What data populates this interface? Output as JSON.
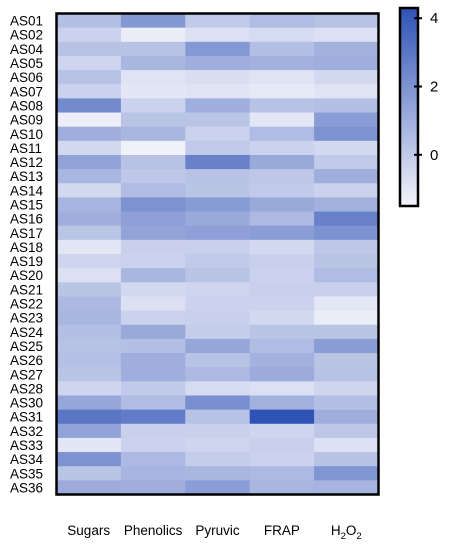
{
  "chart_data": {
    "type": "heatmap",
    "rows": [
      "AS01",
      "AS02",
      "AS04",
      "AS05",
      "AS06",
      "AS07",
      "AS08",
      "AS09",
      "AS10",
      "AS11",
      "AS12",
      "AS13",
      "AS14",
      "AS15",
      "AS16",
      "AS17",
      "AS18",
      "AS19",
      "AS20",
      "AS21",
      "AS22",
      "AS23",
      "AS24",
      "AS25",
      "AS26",
      "AS27",
      "AS28",
      "AS30",
      "AS31",
      "AS32",
      "AS33",
      "AS34",
      "AS35",
      "AS36"
    ],
    "columns": [
      {
        "label": "Sugars"
      },
      {
        "label": "Phenolics"
      },
      {
        "label": "Pyruvic"
      },
      {
        "label": "FRAP"
      },
      {
        "label": "H",
        "sub": "2",
        "mid": "O",
        "sub2": "2"
      }
    ],
    "values": [
      [
        0.4,
        1.8,
        0.0,
        0.5,
        0.3
      ],
      [
        -0.3,
        -1.2,
        -0.8,
        -0.6,
        -0.8
      ],
      [
        0.3,
        0.3,
        1.8,
        0.4,
        0.9
      ],
      [
        -0.4,
        0.7,
        1.0,
        0.9,
        1.0
      ],
      [
        0.3,
        -0.9,
        -0.7,
        -0.9,
        -0.5
      ],
      [
        -0.3,
        -1.0,
        -0.9,
        -1.1,
        -0.9
      ],
      [
        2.3,
        -0.3,
        1.0,
        0.3,
        0.4
      ],
      [
        -1.3,
        0.2,
        0.2,
        -1.0,
        1.6
      ],
      [
        1.0,
        0.7,
        -0.3,
        0.5,
        2.0
      ],
      [
        -0.5,
        -1.4,
        0.0,
        -0.3,
        -0.5
      ],
      [
        1.4,
        0.3,
        2.6,
        1.2,
        0.0
      ],
      [
        0.7,
        0.1,
        0.3,
        0.1,
        1.0
      ],
      [
        -0.5,
        0.5,
        0.2,
        0.0,
        -0.3
      ],
      [
        0.8,
        2.0,
        1.7,
        1.2,
        0.9
      ],
      [
        1.0,
        1.5,
        1.2,
        0.6,
        2.6
      ],
      [
        0.2,
        1.4,
        1.5,
        1.6,
        2.0
      ],
      [
        -1.0,
        -0.2,
        -0.2,
        -0.5,
        0.1
      ],
      [
        -0.4,
        -0.3,
        0.0,
        -0.2,
        0.2
      ],
      [
        -0.8,
        0.7,
        0.2,
        -0.3,
        0.5
      ],
      [
        0.2,
        -0.5,
        -0.4,
        -0.2,
        -0.2
      ],
      [
        0.6,
        -0.8,
        -0.3,
        -0.3,
        -1.0
      ],
      [
        0.7,
        -0.3,
        -0.2,
        -0.5,
        -1.2
      ],
      [
        0.4,
        1.2,
        -0.1,
        0.2,
        0.2
      ],
      [
        0.3,
        0.4,
        1.3,
        0.5,
        1.6
      ],
      [
        0.4,
        1.0,
        0.3,
        0.9,
        0.2
      ],
      [
        0.2,
        1.0,
        0.6,
        1.1,
        0.3
      ],
      [
        -0.4,
        0.0,
        -0.6,
        -0.8,
        -0.4
      ],
      [
        1.3,
        0.5,
        2.1,
        0.9,
        0.4
      ],
      [
        3.0,
        2.8,
        0.3,
        4.3,
        1.0
      ],
      [
        1.4,
        -0.2,
        -0.2,
        -0.4,
        0.1
      ],
      [
        -1.0,
        -0.3,
        -0.4,
        -0.2,
        -0.8
      ],
      [
        2.0,
        0.6,
        -0.1,
        -0.3,
        0.3
      ],
      [
        0.2,
        0.8,
        0.7,
        0.6,
        1.9
      ],
      [
        1.1,
        1.0,
        1.6,
        0.7,
        0.8
      ]
    ],
    "colorbar": {
      "ticks": [
        0,
        2,
        4
      ],
      "min": -1.5,
      "max": 4.3
    },
    "colors": {
      "low": "#f4f4fb",
      "high": "#2f52b5",
      "frame": "#000000"
    }
  }
}
